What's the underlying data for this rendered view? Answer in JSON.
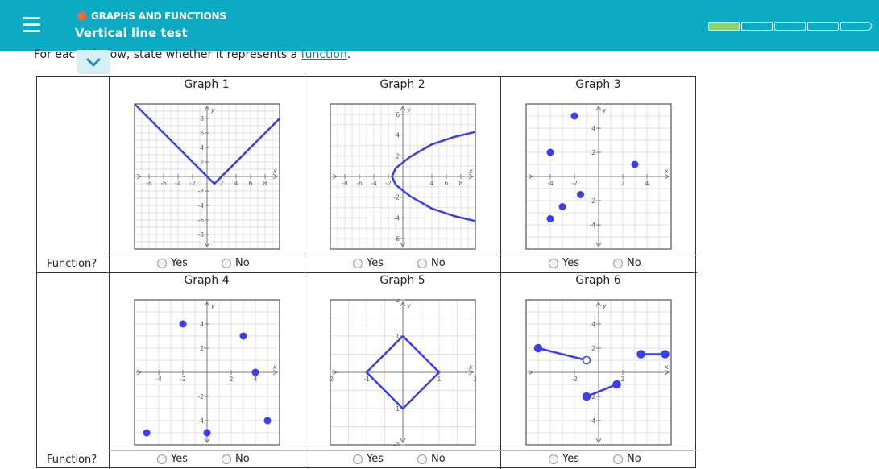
{
  "header": {
    "topic": "GRAPHS AND FUNCTIONS",
    "title": "Vertical line test",
    "progress": {
      "completed": 1,
      "total": 5
    }
  },
  "instructions": {
    "before": "For eac",
    "hidden": "h",
    "after": "h below, state whether it represents a ",
    "link": "function",
    "period": "."
  },
  "row_label": "Function?",
  "options": [
    "Yes",
    "No"
  ],
  "graphs": [
    {
      "label": "Graph 1"
    },
    {
      "label": "Graph 2"
    },
    {
      "label": "Graph 3"
    },
    {
      "label": "Graph 4"
    },
    {
      "label": "Graph 5"
    },
    {
      "label": "Graph 6"
    }
  ],
  "axis": {
    "x": "x",
    "y": "y"
  },
  "colors": {
    "header": "#0daac4",
    "curve": "#3a3ef2",
    "accent": "#f4693a",
    "progress": "#8fcf6e"
  },
  "chart_data": [
    {
      "type": "line",
      "title": "Graph 1",
      "xlim": [
        -10,
        10
      ],
      "ylim": [
        -10,
        10
      ],
      "xticks": [
        "-8",
        "-6",
        "-4",
        "-2",
        "2",
        "4",
        "6",
        "8"
      ],
      "yticks": [
        "8",
        "6",
        "4",
        "2",
        "-2",
        "-4",
        "-6",
        "-8"
      ],
      "series": [
        {
          "x": [
            -10,
            1,
            10
          ],
          "y": [
            10,
            -1,
            8
          ]
        }
      ]
    },
    {
      "type": "line",
      "title": "Graph 2",
      "xlim": [
        -10,
        10
      ],
      "ylim": [
        -7,
        7
      ],
      "xticks": [
        "-8",
        "-6",
        "-4",
        "-2",
        "4",
        "6",
        "8"
      ],
      "yticks": [
        "6",
        "4",
        "2",
        "-2",
        "-4",
        "-6"
      ],
      "series": [
        {
          "x": [
            10,
            7,
            4,
            1,
            -1,
            -1.5,
            -1,
            1,
            4,
            7,
            10
          ],
          "y": [
            4.3,
            3.8,
            3.1,
            1.9,
            0.8,
            0,
            -0.8,
            -1.9,
            -3.1,
            -3.8,
            -4.3
          ]
        }
      ]
    },
    {
      "type": "scatter",
      "title": "Graph 3",
      "xlim": [
        -6,
        6
      ],
      "ylim": [
        -6,
        6
      ],
      "xticks": [
        "-4",
        "-2",
        "2",
        "4"
      ],
      "yticks": [
        "4",
        "2",
        "-2",
        "-4"
      ],
      "points": [
        [
          -2,
          5
        ],
        [
          -4,
          2
        ],
        [
          -1.5,
          -1.5
        ],
        [
          -4,
          -3.5
        ],
        [
          -3,
          -2.5
        ],
        [
          3,
          1
        ]
      ]
    },
    {
      "type": "scatter",
      "title": "Graph 4",
      "xlim": [
        -6,
        6
      ],
      "ylim": [
        -6,
        6
      ],
      "xticks": [
        "-4",
        "-2",
        "2",
        "4"
      ],
      "yticks": [
        "4",
        "2",
        "-2",
        "-4"
      ],
      "points": [
        [
          -2,
          4
        ],
        [
          3,
          3
        ],
        [
          4,
          0
        ],
        [
          5,
          -4
        ],
        [
          -5,
          -5
        ],
        [
          0,
          -5
        ]
      ]
    },
    {
      "type": "line",
      "title": "Graph 5",
      "xlim": [
        -2,
        2
      ],
      "ylim": [
        -2,
        2
      ],
      "xticks": [
        "-2",
        "-1",
        "1",
        "2"
      ],
      "yticks": [
        "2",
        "1",
        "-1",
        "-2"
      ],
      "series": [
        {
          "x": [
            0,
            1,
            0,
            -1,
            0
          ],
          "y": [
            1,
            0,
            -1,
            0,
            1
          ]
        }
      ]
    },
    {
      "type": "line",
      "title": "Graph 6",
      "xlim": [
        -6,
        6
      ],
      "ylim": [
        -6,
        6
      ],
      "xticks": [
        "-2",
        "2"
      ],
      "yticks": [
        "4",
        "2",
        "-2",
        "-4"
      ],
      "segments": [
        {
          "from": [
            -5,
            2
          ],
          "to": [
            -1,
            1
          ],
          "from_closed": true,
          "to_closed": false
        },
        {
          "from": [
            -1,
            -2
          ],
          "to": [
            1.5,
            -1
          ],
          "from_closed": true,
          "to_closed": true
        },
        {
          "from": [
            3.5,
            1.5
          ],
          "to": [
            5.5,
            1.5
          ],
          "from_closed": true,
          "to_closed": true
        }
      ]
    }
  ]
}
